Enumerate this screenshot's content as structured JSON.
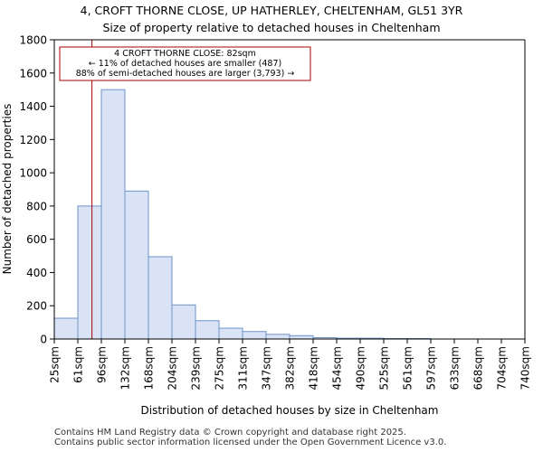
{
  "chart_data": {
    "type": "bar",
    "title": "4, CROFT THORNE CLOSE, UP HATHERLEY, CHELTENHAM, GL51 3YR",
    "subtitle": "Size of property relative to detached houses in Cheltenham",
    "xlabel": "Distribution of detached houses by size in Cheltenham",
    "ylabel": "Number of detached properties",
    "ylim": [
      0,
      1800
    ],
    "yticks": [
      "0",
      "200",
      "400",
      "600",
      "800",
      "1000",
      "1200",
      "1400",
      "1600",
      "1800"
    ],
    "tick_labels": [
      "25sqm",
      "61sqm",
      "96sqm",
      "132sqm",
      "168sqm",
      "204sqm",
      "239sqm",
      "275sqm",
      "311sqm",
      "347sqm",
      "382sqm",
      "418sqm",
      "454sqm",
      "490sqm",
      "525sqm",
      "561sqm",
      "597sqm",
      "633sqm",
      "668sqm",
      "704sqm",
      "740sqm"
    ],
    "values": [
      125,
      800,
      1500,
      890,
      495,
      205,
      110,
      65,
      45,
      28,
      20,
      8,
      5,
      5,
      3,
      3,
      0,
      0,
      0,
      0
    ],
    "grid": false,
    "bar_fill": "#dae3f5",
    "bar_stroke": "#6e93cc",
    "property_line": {
      "value_sqm": 82,
      "color": "#aa0000"
    },
    "annotation": {
      "line1": "4 CROFT THORNE CLOSE: 82sqm",
      "line2": "← 11% of detached houses are smaller (487)",
      "line3": "88% of semi-detached houses are larger (3,793) →",
      "border_color": "#aa0000"
    }
  },
  "footer": {
    "line1": "Contains HM Land Registry data © Crown copyright and database right 2025.",
    "line2": "Contains public sector information licensed under the Open Government Licence v3.0."
  }
}
